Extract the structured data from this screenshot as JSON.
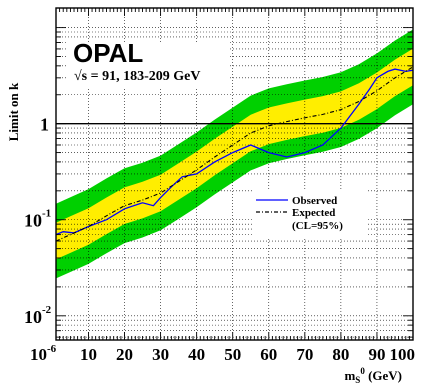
{
  "chart_data": {
    "type": "line",
    "title": "",
    "annotation_main": "OPAL",
    "annotation_energy": "√s = 91, 183-209 GeV",
    "ylabel": "Limit on k",
    "xlabel": "m",
    "xlabel_sub": "S",
    "xlabel_sup": "0",
    "xlabel_unit": " (GeV)",
    "x_ticks": [
      {
        "x": 1,
        "label": "10",
        "sup": "-6"
      },
      {
        "x": 10,
        "label": "10"
      },
      {
        "x": 20,
        "label": "20"
      },
      {
        "x": 30,
        "label": "30"
      },
      {
        "x": 40,
        "label": "40"
      },
      {
        "x": 50,
        "label": "50"
      },
      {
        "x": 60,
        "label": "60"
      },
      {
        "x": 70,
        "label": "70"
      },
      {
        "x": 80,
        "label": "80"
      },
      {
        "x": 90,
        "label": "90"
      },
      {
        "x": 100,
        "label": "100"
      }
    ],
    "y_ticks": [
      {
        "y": 1,
        "label": "1"
      },
      {
        "y": 0.1,
        "label": "10",
        "sup": "-1"
      },
      {
        "y": 0.01,
        "label": "10",
        "sup": "-2"
      }
    ],
    "xlim": [
      1,
      100
    ],
    "ylim": [
      0.0056,
      16
    ],
    "y_scale": "log",
    "reference_line_y": 1,
    "legend": {
      "position": "center-right",
      "observed": "Observed",
      "expected": "Expected",
      "cl": "(CL=95%)"
    },
    "colors": {
      "band_2sigma": "#00d000",
      "band_1sigma": "#ffee00",
      "observed": "#0000ff",
      "expected": "#000000"
    },
    "series": [
      {
        "name": "Observed",
        "x": [
          1,
          3,
          6,
          10,
          15,
          20,
          25,
          28,
          30,
          33,
          36,
          40,
          45,
          50,
          55,
          60,
          65,
          70,
          75,
          80,
          85,
          88,
          90,
          93,
          95,
          98,
          100
        ],
        "y": [
          0.07,
          0.075,
          0.073,
          0.085,
          0.1,
          0.13,
          0.15,
          0.14,
          0.17,
          0.22,
          0.28,
          0.3,
          0.4,
          0.5,
          0.6,
          0.5,
          0.45,
          0.5,
          0.6,
          0.9,
          1.6,
          2.3,
          3.0,
          3.5,
          3.7,
          3.5,
          3.6
        ]
      },
      {
        "name": "Expected",
        "x": [
          1,
          5,
          10,
          15,
          20,
          25,
          30,
          35,
          40,
          45,
          50,
          55,
          60,
          65,
          70,
          75,
          80,
          85,
          90,
          95,
          100
        ],
        "y": [
          0.06,
          0.07,
          0.085,
          0.11,
          0.14,
          0.16,
          0.19,
          0.25,
          0.33,
          0.45,
          0.6,
          0.8,
          0.95,
          1.05,
          1.15,
          1.25,
          1.4,
          1.7,
          2.2,
          3.0,
          3.9
        ]
      }
    ],
    "band_1sigma_factor": 1.55,
    "band_2sigma_factor": 2.45
  }
}
